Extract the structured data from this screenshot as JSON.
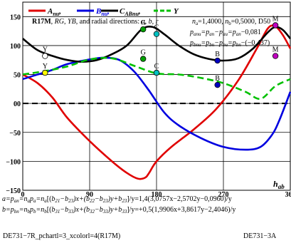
{
  "chart_data": {
    "type": "line",
    "legend": [
      {
        "label": "A",
        "sub": "nu",
        "color": "#e00000"
      },
      {
        "label": "B",
        "sub": "nu",
        "color": "#0000e0"
      },
      {
        "label": "C",
        "sub": "ABnu",
        "color": "#000000"
      },
      {
        "label": "Y",
        "sub": "",
        "color": "#00c000"
      }
    ],
    "info_line1": "R17M, RG, YB, and radial directions: a, b, r",
    "params": "n_a=1,4000, n_b=0,5000, D50",
    "eq_anu": "p_anu=p_an−p_au=p_an−0,081",
    "eq_bnu": "p_bnu=p_bn−p_bu=p_bn−(−0,437)",
    "xlabel": "h_ab",
    "xlim": [
      0,
      360
    ],
    "ylim": [
      -150,
      175
    ],
    "xticks": [
      0,
      90,
      180,
      270,
      360
    ],
    "xtick_labels": [
      "0",
      "90",
      "180",
      "270",
      "360"
    ],
    "yticks": [
      -150,
      -100,
      -50,
      0,
      50,
      100,
      150
    ],
    "ytick_labels": [
      "−150",
      "−100",
      "−50",
      "00",
      "50",
      "100",
      "150"
    ],
    "series": [
      {
        "name": "A_nu",
        "color": "#e00000",
        "dash": "",
        "x": [
          0,
          20,
          40,
          60,
          90,
          120,
          140,
          155,
          165,
          170,
          180,
          200,
          230,
          260,
          290,
          315,
          330,
          340,
          350,
          360
        ],
        "y": [
          50,
          35,
          10,
          -25,
          -65,
          -100,
          -120,
          -130,
          -128,
          -120,
          -100,
          -75,
          -45,
          -10,
          40,
          95,
          130,
          133,
          118,
          95
        ]
      },
      {
        "name": "B_nu",
        "color": "#0000e0",
        "dash": "",
        "x": [
          0,
          20,
          40,
          60,
          90,
          110,
          130,
          150,
          170,
          190,
          210,
          240,
          270,
          300,
          320,
          335,
          345,
          360
        ],
        "y": [
          42,
          50,
          58,
          68,
          76,
          79,
          75,
          55,
          22,
          -15,
          -38,
          -60,
          -75,
          -80,
          -75,
          -55,
          -30,
          20
        ]
      },
      {
        "name": "C_ABnu",
        "color": "#000000",
        "dash": "",
        "x": [
          0,
          20,
          40,
          60,
          80,
          100,
          120,
          140,
          160,
          175,
          190,
          210,
          230,
          250,
          270,
          290,
          310,
          330,
          340,
          350,
          360
        ],
        "y": [
          112,
          92,
          82,
          75,
          72,
          75,
          85,
          100,
          128,
          132,
          120,
          100,
          85,
          77,
          74,
          78,
          95,
          123,
          132,
          127,
          112
        ]
      },
      {
        "name": "Y",
        "color": "#00c000",
        "dash": "9,5",
        "x": [
          0,
          30,
          60,
          90,
          120,
          150,
          180,
          210,
          240,
          270,
          300,
          320,
          340,
          360
        ],
        "y": [
          50,
          56,
          64,
          76,
          78,
          65,
          52,
          50,
          44,
          35,
          20,
          8,
          30,
          42
        ]
      }
    ],
    "markers": [
      {
        "x": 30,
        "y": 82,
        "label": "Y",
        "fill": "#ffffff"
      },
      {
        "x": 30,
        "y": 53,
        "label": "Y",
        "fill": "#ffff00"
      },
      {
        "x": 162,
        "y": 128,
        "label": "G",
        "fill": "#00a000"
      },
      {
        "x": 162,
        "y": 77,
        "label": "G",
        "fill": "#00a000"
      },
      {
        "x": 180,
        "y": 120,
        "label": "C",
        "fill": "#00c0c0"
      },
      {
        "x": 180,
        "y": 53,
        "label": "C",
        "fill": "#00c0c0"
      },
      {
        "x": 262,
        "y": 74,
        "label": "B",
        "fill": "#0000c0"
      },
      {
        "x": 262,
        "y": 32,
        "label": "B",
        "fill": "#0000c0"
      },
      {
        "x": 340,
        "y": 135,
        "label": "M",
        "fill": "#c000c0"
      },
      {
        "x": 340,
        "y": 82,
        "label": "M",
        "fill": "#c000c0"
      }
    ],
    "formula_a": "a=p_an=n_a p_a=n_a[(b21−b23)x+(b22−b23)y+b23]/y=1,4(3,0757x−2,5702y−0,0960)/y",
    "formula_b": "b=p_bn=n_b p_b=n_b[(b31−b33)x+(b32−b33)y+b33]/y=+0,5(1,9906x+3,8617y−2,4046)/y"
  },
  "footer": {
    "left": "DE731−7R_pchartl=3_xcolorl=4(R17M)",
    "right": "DE731−3A"
  }
}
